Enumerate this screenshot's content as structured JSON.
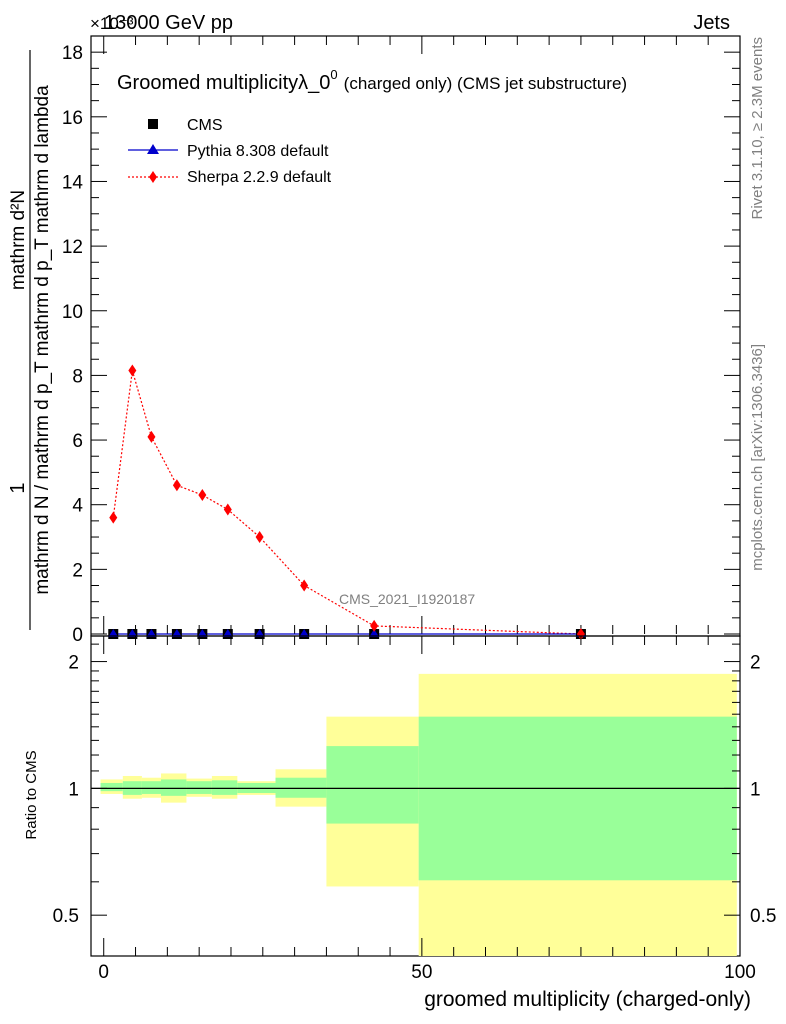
{
  "header": {
    "energy": "13000 GeV pp",
    "category": "Jets",
    "exponent_label": "×10⁻³"
  },
  "main_plot": {
    "title_main": "Groomed multiplicityλ_0",
    "title_sup": "0",
    "title_suffix": "(charged only) (CMS jet substructure)",
    "ylabel_numerator": "mathrm d²N",
    "ylabel_denominator": "mathrm d N / mathrm d p_T mathrm d p_T mathrm d lambda",
    "ylabel_prefix": "1",
    "analysis_tag": "CMS_2021_I1920187",
    "yticks": [
      "0",
      "2",
      "4",
      "6",
      "8",
      "10",
      "12",
      "14",
      "16",
      "18"
    ]
  },
  "ratio_plot": {
    "ylabel": "Ratio to CMS",
    "yticks": [
      "0.5",
      "1",
      "2"
    ]
  },
  "xaxis": {
    "label": "groomed multiplicity (charged-only)",
    "ticks": [
      "0",
      "50",
      "100"
    ]
  },
  "side_text": {
    "rivet": "Rivet 3.1.10, ≥ 2.3M events",
    "mcplots": "mcplots.cern.ch [arXiv:1306.3436]"
  },
  "legend": [
    {
      "name": "CMS",
      "marker": "square",
      "color": "#000000"
    },
    {
      "name": "Pythia 8.308 default",
      "marker": "triangle",
      "color": "#0000cc"
    },
    {
      "name": "Sherpa 2.2.9 default",
      "marker": "diamond",
      "color": "#ff0000"
    }
  ],
  "chart_data": {
    "type": "line",
    "xlim": [
      -2,
      100
    ],
    "ylim": [
      0,
      18.5
    ],
    "y_scale_factor": "1e-3",
    "x": [
      1.5,
      4.5,
      7.5,
      11.5,
      15.5,
      19.5,
      24.5,
      31.5,
      42.5,
      75
    ],
    "series": [
      {
        "name": "CMS",
        "values": [
          0,
          0,
          0,
          0,
          0,
          0,
          0,
          0,
          0,
          0
        ]
      },
      {
        "name": "Pythia 8.308 default",
        "values": [
          0,
          0,
          0,
          0,
          0,
          0,
          0,
          0,
          0,
          0
        ]
      },
      {
        "name": "Sherpa 2.2.9 default",
        "values": [
          3.6,
          8.15,
          6.1,
          4.6,
          4.3,
          3.85,
          3.0,
          1.5,
          0.25,
          0.0
        ]
      }
    ],
    "ratio": {
      "ylim": [
        0.4,
        2.3
      ],
      "scale": "log",
      "bands": [
        {
          "x0": -0.5,
          "x1": 3,
          "inner": [
            0.985,
            1.03
          ],
          "outer": [
            0.97,
            1.05
          ]
        },
        {
          "x0": 3,
          "x1": 6,
          "inner": [
            0.965,
            1.04
          ],
          "outer": [
            0.945,
            1.07
          ]
        },
        {
          "x0": 6,
          "x1": 9,
          "inner": [
            0.97,
            1.04
          ],
          "outer": [
            0.95,
            1.06
          ]
        },
        {
          "x0": 9,
          "x1": 13,
          "inner": [
            0.96,
            1.05
          ],
          "outer": [
            0.925,
            1.085
          ]
        },
        {
          "x0": 13,
          "x1": 17,
          "inner": [
            0.97,
            1.04
          ],
          "outer": [
            0.955,
            1.055
          ]
        },
        {
          "x0": 17,
          "x1": 21,
          "inner": [
            0.965,
            1.045
          ],
          "outer": [
            0.945,
            1.07
          ]
        },
        {
          "x0": 21,
          "x1": 27,
          "inner": [
            0.975,
            1.03
          ],
          "outer": [
            0.965,
            1.04
          ]
        },
        {
          "x0": 27,
          "x1": 35,
          "inner": [
            0.95,
            1.06
          ],
          "outer": [
            0.905,
            1.11
          ]
        },
        {
          "x0": 35,
          "x1": 49.5,
          "inner": [
            0.825,
            1.26
          ],
          "outer": [
            0.585,
            1.48
          ]
        },
        {
          "x0": 49.5,
          "x1": 99.5,
          "inner": [
            0.605,
            1.48
          ],
          "outer": [
            0.38,
            1.87
          ]
        }
      ]
    }
  }
}
